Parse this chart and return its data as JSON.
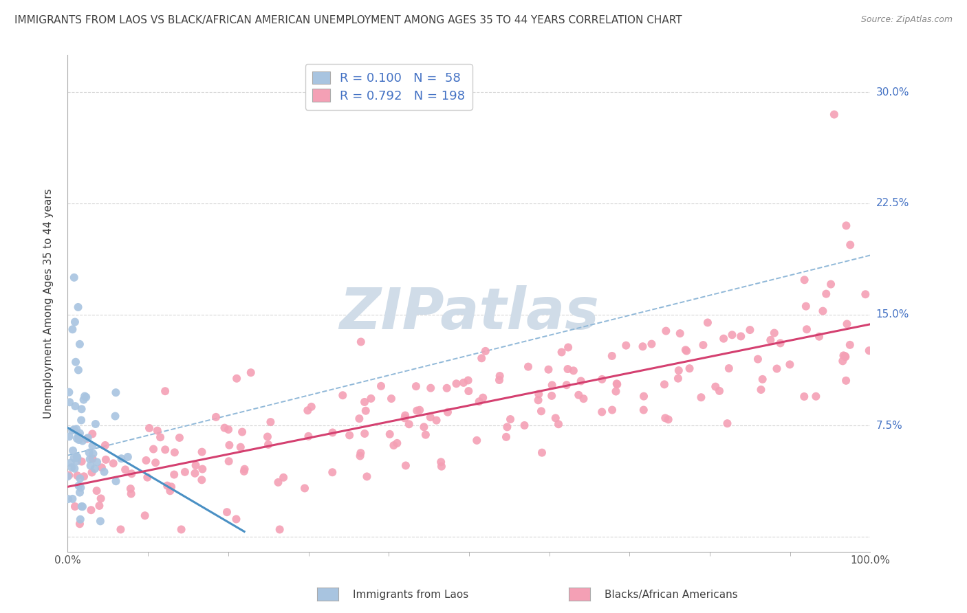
{
  "title": "IMMIGRANTS FROM LAOS VS BLACK/AFRICAN AMERICAN UNEMPLOYMENT AMONG AGES 35 TO 44 YEARS CORRELATION CHART",
  "source": "Source: ZipAtlas.com",
  "ylabel": "Unemployment Among Ages 35 to 44 years",
  "xlim": [
    0.0,
    1.0
  ],
  "ylim": [
    -0.01,
    0.325
  ],
  "ytick_positions": [
    0.0,
    0.075,
    0.15,
    0.225,
    0.3
  ],
  "yticklabels": [
    "",
    "7.5%",
    "15.0%",
    "22.5%",
    "30.0%"
  ],
  "blue_R": 0.1,
  "blue_N": 58,
  "pink_R": 0.792,
  "pink_N": 198,
  "blue_scatter_color": "#a8c4e0",
  "pink_scatter_color": "#f4a0b5",
  "blue_line_color": "#4a90c4",
  "pink_line_color": "#d44070",
  "dash_line_color": "#90b8d8",
  "watermark_color": "#d0dce8",
  "background_color": "#ffffff",
  "title_fontsize": 11,
  "axis_label_fontsize": 11,
  "tick_label_fontsize": 11,
  "legend_fontsize": 13,
  "label_color": "#4472c4",
  "title_color": "#404040"
}
